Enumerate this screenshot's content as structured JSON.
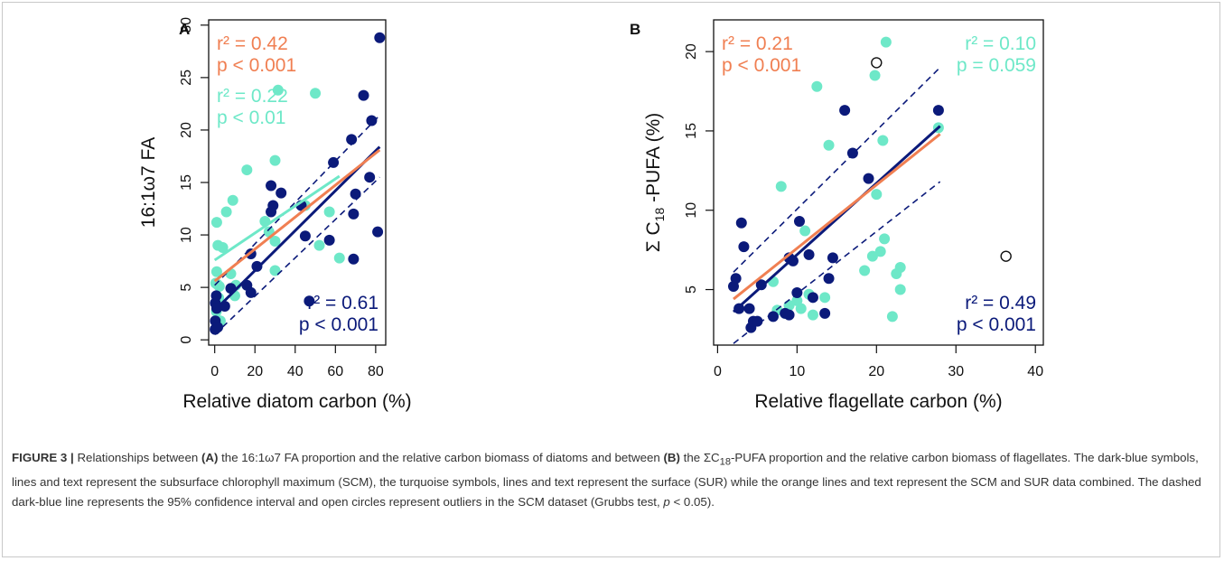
{
  "chart_data": [
    {
      "panel": "A",
      "type": "scatter",
      "xlabel": "Relative diatom carbon (%)",
      "ylabel": "16:1ω7 FA",
      "xlim": [
        -3,
        85
      ],
      "ylim": [
        -0.5,
        30.5
      ],
      "xticks": [
        0,
        20,
        40,
        60,
        80
      ],
      "yticks": [
        0,
        5,
        10,
        15,
        20,
        25,
        30
      ],
      "colors": {
        "scm": "#0b1a7a",
        "sur": "#6ee8c8",
        "combined": "#f07f52"
      },
      "series": [
        {
          "name": "SCM",
          "color": "#0b1a7a",
          "points": [
            [
              0.2,
              1.0
            ],
            [
              0.3,
              1.8
            ],
            [
              0.3,
              3.5
            ],
            [
              0.8,
              4.2
            ],
            [
              1.0,
              3.0
            ],
            [
              1.5,
              1.2
            ],
            [
              5,
              3.2
            ],
            [
              8,
              4.9
            ],
            [
              16,
              5.2
            ],
            [
              18,
              4.5
            ],
            [
              18,
              8.2
            ],
            [
              21,
              7.0
            ],
            [
              28,
              12.2
            ],
            [
              28,
              14.7
            ],
            [
              29,
              12.8
            ],
            [
              33,
              14.0
            ],
            [
              43,
              12.8
            ],
            [
              45,
              9.9
            ],
            [
              47,
              3.7
            ],
            [
              57,
              9.5
            ],
            [
              59,
              16.9
            ],
            [
              68,
              19.1
            ],
            [
              69,
              12.0
            ],
            [
              69,
              7.7
            ],
            [
              70,
              13.9
            ],
            [
              74,
              23.3
            ],
            [
              77,
              15.5
            ],
            [
              78,
              20.9
            ],
            [
              81,
              10.3
            ],
            [
              82,
              28.8
            ]
          ]
        },
        {
          "name": "SUR",
          "color": "#6ee8c8",
          "points": [
            [
              0.5,
              5.4
            ],
            [
              0.8,
              2.7
            ],
            [
              1.0,
              11.2
            ],
            [
              1.0,
              6.5
            ],
            [
              1.2,
              5.3
            ],
            [
              1.6,
              9.0
            ],
            [
              2.0,
              4.0
            ],
            [
              2.3,
              5.1
            ],
            [
              2.8,
              1.8
            ],
            [
              4.0,
              8.8
            ],
            [
              5.8,
              12.2
            ],
            [
              8.0,
              6.3
            ],
            [
              9.0,
              13.3
            ],
            [
              10.0,
              4.2
            ],
            [
              10.5,
              5.2
            ],
            [
              16.0,
              16.2
            ],
            [
              25.0,
              11.3
            ],
            [
              27.0,
              10.3
            ],
            [
              30.0,
              17.1
            ],
            [
              30.0,
              9.4
            ],
            [
              30.0,
              6.6
            ],
            [
              31.5,
              23.8
            ],
            [
              45.0,
              12.8
            ],
            [
              50.0,
              23.5
            ],
            [
              52.0,
              9.0
            ],
            [
              57.0,
              12.2
            ],
            [
              62.0,
              7.8
            ]
          ]
        }
      ],
      "fit_lines": [
        {
          "name": "SCM",
          "color": "#0b1a7a",
          "style": "solid",
          "x": [
            0,
            82
          ],
          "y": [
            2.8,
            18.4
          ]
        },
        {
          "name": "SCM 95% CI upper",
          "color": "#0b1a7a",
          "style": "dashed",
          "x": [
            0,
            82
          ],
          "y": [
            5.2,
            21.4
          ]
        },
        {
          "name": "SCM 95% CI lower",
          "color": "#0b1a7a",
          "style": "dashed",
          "x": [
            0,
            82
          ],
          "y": [
            0.5,
            15.5
          ]
        },
        {
          "name": "SUR",
          "color": "#6ee8c8",
          "style": "solid",
          "x": [
            0,
            62
          ],
          "y": [
            7.6,
            15.6
          ]
        },
        {
          "name": "SCM+SUR",
          "color": "#f07f52",
          "style": "solid",
          "x": [
            0,
            82
          ],
          "y": [
            5.6,
            18.1
          ]
        }
      ],
      "outliers": [],
      "annotations": [
        {
          "r2": "r² = 0.42",
          "p": "p < 0.001",
          "color": "#f07f52",
          "position": "top-left"
        },
        {
          "r2": "r² = 0.22",
          "p": "p < 0.01",
          "color": "#6ee8c8",
          "position": "upper-left"
        },
        {
          "r2": "r² = 0.61",
          "p": "p < 0.001",
          "color": "#0b1a7a",
          "position": "bottom-right"
        }
      ]
    },
    {
      "panel": "B",
      "type": "scatter",
      "xlabel": "Relative flagellate carbon (%)",
      "ylabel": "Σ C18 -PUFA (%)",
      "ylabel_parts": {
        "pre": "Σ C",
        "sub": "18",
        "post": " -PUFA (%)"
      },
      "xlim": [
        -0.5,
        41
      ],
      "ylim": [
        1.5,
        22
      ],
      "xticks": [
        0,
        10,
        20,
        30,
        40
      ],
      "yticks": [
        5,
        10,
        15,
        20
      ],
      "colors": {
        "scm": "#0b1a7a",
        "sur": "#6ee8c8",
        "combined": "#f07f52"
      },
      "series": [
        {
          "name": "SCM",
          "color": "#0b1a7a",
          "points": [
            [
              2.0,
              5.2
            ],
            [
              2.3,
              5.7
            ],
            [
              2.7,
              3.8
            ],
            [
              3.0,
              9.2
            ],
            [
              3.3,
              7.7
            ],
            [
              4.0,
              3.8
            ],
            [
              4.2,
              2.6
            ],
            [
              4.5,
              3.0
            ],
            [
              5.0,
              3.0
            ],
            [
              5.5,
              5.3
            ],
            [
              7.0,
              3.3
            ],
            [
              8.5,
              3.5
            ],
            [
              9.0,
              7.0
            ],
            [
              9.5,
              6.8
            ],
            [
              10.0,
              4.8
            ],
            [
              10.3,
              9.3
            ],
            [
              11.5,
              7.2
            ],
            [
              12.0,
              4.5
            ],
            [
              13.5,
              3.5
            ],
            [
              14.0,
              5.7
            ],
            [
              14.5,
              7.0
            ],
            [
              16.0,
              16.3
            ],
            [
              17.0,
              13.6
            ],
            [
              19.0,
              12.0
            ],
            [
              27.8,
              16.3
            ],
            [
              9.0,
              3.4
            ]
          ]
        },
        {
          "name": "SUR",
          "color": "#6ee8c8",
          "points": [
            [
              7.0,
              5.5
            ],
            [
              7.5,
              3.7
            ],
            [
              8.0,
              11.5
            ],
            [
              8.5,
              3.5
            ],
            [
              9.0,
              4.0
            ],
            [
              10.0,
              4.3
            ],
            [
              10.5,
              3.8
            ],
            [
              11.0,
              8.7
            ],
            [
              11.5,
              4.7
            ],
            [
              12.0,
              3.4
            ],
            [
              12.5,
              17.8
            ],
            [
              13.5,
              4.5
            ],
            [
              14.0,
              14.1
            ],
            [
              18.5,
              6.2
            ],
            [
              19.5,
              7.1
            ],
            [
              19.8,
              18.5
            ],
            [
              20.0,
              11.0
            ],
            [
              20.5,
              7.4
            ],
            [
              20.8,
              14.4
            ],
            [
              21.0,
              8.2
            ],
            [
              21.2,
              20.6
            ],
            [
              22.0,
              3.3
            ],
            [
              22.5,
              6.0
            ],
            [
              23.0,
              5.0
            ],
            [
              23.0,
              6.4
            ],
            [
              27.8,
              15.2
            ]
          ]
        }
      ],
      "fit_lines": [
        {
          "name": "SCM",
          "color": "#0b1a7a",
          "style": "solid",
          "x": [
            2,
            28
          ],
          "y": [
            3.6,
            15.3
          ]
        },
        {
          "name": "SCM 95% CI upper",
          "color": "#0b1a7a",
          "style": "dashed",
          "x": [
            2,
            28
          ],
          "y": [
            6.1,
            19.0
          ]
        },
        {
          "name": "SCM 95% CI lower",
          "color": "#0b1a7a",
          "style": "dashed",
          "x": [
            2,
            28
          ],
          "y": [
            1.6,
            11.8
          ]
        },
        {
          "name": "SCM+SUR",
          "color": "#f07f52",
          "style": "solid",
          "x": [
            2,
            28
          ],
          "y": [
            4.4,
            14.8
          ]
        }
      ],
      "outliers": [
        [
          20.0,
          19.3
        ],
        [
          36.3,
          7.1
        ]
      ],
      "annotations": [
        {
          "r2": "r² = 0.21",
          "p": "p < 0.001",
          "color": "#f07f52",
          "position": "top-left"
        },
        {
          "r2": "r² = 0.10",
          "p": "p = 0.059",
          "color": "#6ee8c8",
          "position": "top-right"
        },
        {
          "r2": "r² = 0.49",
          "p": "p < 0.001",
          "color": "#0b1a7a",
          "position": "bottom-right"
        }
      ]
    }
  ],
  "caption": {
    "label": "FIGURE 3 |",
    "t1": " Relationships between ",
    "b1": "(A)",
    "t2": " the 16:1ω7 FA proportion and the relative carbon biomass of diatoms and between ",
    "b2": "(B)",
    "t3a": " the ΣC",
    "sub": "18",
    "t3b": "-PUFA proportion and the relative carbon biomass of flagellates. The dark-blue symbols, lines and text represent the subsurface chlorophyll maximum (SCM), the turquoise symbols, lines and text represent the surface (SUR) while the orange lines and text represent the SCM and SUR data combined. The dashed dark-blue line represents the 95% confidence interval and open circles represent outliers in the SCM dataset (Grubbs test, ",
    "pitalic": "p",
    "t4": " < 0.05)."
  }
}
